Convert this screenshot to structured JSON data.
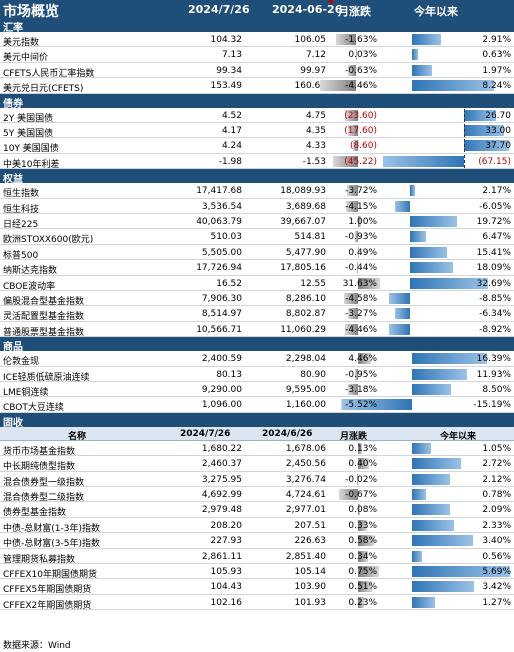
{
  "header": {
    "title": "市场概览",
    "col1": "2024/7/26",
    "col2": "2024-06-26",
    "col3": "月涨跌",
    "col4": "今年以来"
  },
  "sections": [
    {
      "label": "汇率",
      "rows": [
        {
          "name": "美元指数",
          "v1": "104.32",
          "v2": "106.05",
          "mtd": "-1.63%",
          "ytd": "2.91%"
        },
        {
          "name": "美元中间价",
          "v1": "7.13",
          "v2": "7.12",
          "mtd": "0.03%",
          "ytd": "0.63%"
        },
        {
          "name": "CFETS人民币汇率指数",
          "v1": "99.34",
          "v2": "99.97",
          "mtd": "-0.63%",
          "ytd": "1.97%"
        },
        {
          "name": "美元兑日元(CFETS)",
          "v1": "153.49",
          "v2": "160.65",
          "mtd": "-4.46%",
          "ytd": "8.24%"
        }
      ]
    },
    {
      "label": "债券",
      "rows": [
        {
          "name": "2Y 美国国债",
          "v1": "4.52",
          "v2": "4.75",
          "mtd": "(23.60)",
          "ytd": "26.70"
        },
        {
          "name": "5Y 美国国债",
          "v1": "4.17",
          "v2": "4.35",
          "mtd": "(17.60)",
          "ytd": "33.00"
        },
        {
          "name": "10Y 美国国债",
          "v1": "4.24",
          "v2": "4.33",
          "mtd": "(8.60)",
          "ytd": "37.70"
        },
        {
          "name": "中美10年利差",
          "v1": "-1.98",
          "v2": "-1.53",
          "mtd": "(45.22)",
          "ytd": "(67.15)"
        }
      ]
    },
    {
      "label": "权益",
      "rows": [
        {
          "name": "恒生指数",
          "v1": "17,417.68",
          "v2": "18,089.93",
          "mtd": "-3.72%",
          "ytd": "2.17%"
        },
        {
          "name": "恒生科技",
          "v1": "3,536.54",
          "v2": "3,689.68",
          "mtd": "-4.15%",
          "ytd": "-6.05%"
        },
        {
          "name": "日经225",
          "v1": "40,063.79",
          "v2": "39,667.07",
          "mtd": "1.00%",
          "ytd": "19.72%"
        },
        {
          "name": "欧洲STOXX600(欧元)",
          "v1": "510.03",
          "v2": "514.81",
          "mtd": "-0.93%",
          "ytd": "6.47%"
        },
        {
          "name": "标普500",
          "v1": "5,505.00",
          "v2": "5,477.90",
          "mtd": "0.49%",
          "ytd": "15.41%"
        },
        {
          "name": "纳斯达克指数",
          "v1": "17,726.94",
          "v2": "17,805.16",
          "mtd": "-0.44%",
          "ytd": "18.09%"
        },
        {
          "name": "CBOE波动率",
          "v1": "16.52",
          "v2": "12.55",
          "mtd": "31.63%",
          "ytd": "32.69%"
        },
        {
          "name": "偏股混合型基金指数",
          "v1": "7,906.30",
          "v2": "8,286.10",
          "mtd": "-4.58%",
          "ytd": "-8.85%"
        },
        {
          "name": "灵活配置型基金指数",
          "v1": "8,514.97",
          "v2": "8,802.87",
          "mtd": "-3.27%",
          "ytd": "-6.34%"
        },
        {
          "name": "普通股票型基金指数",
          "v1": "10,566.71",
          "v2": "11,060.29",
          "mtd": "-4.46%",
          "ytd": "-8.92%"
        }
      ]
    },
    {
      "label": "商品",
      "rows": [
        {
          "name": "伦敦金现",
          "v1": "2,400.59",
          "v2": "2,298.04",
          "mtd": "4.46%",
          "ytd": "16.39%"
        },
        {
          "name": "ICE轻质低硫原油连续",
          "v1": "80.13",
          "v2": "80.90",
          "mtd": "-0.95%",
          "ytd": "11.93%"
        },
        {
          "name": "LME铜连续",
          "v1": "9,290.00",
          "v2": "9,595.00",
          "mtd": "-3.18%",
          "ytd": "8.50%"
        },
        {
          "name": "CBOT大豆连续",
          "v1": "1,096.00",
          "v2": "1,160.00",
          "mtd": "-5.52%",
          "ytd": "-15.19%"
        }
      ]
    },
    {
      "label": "固收",
      "colhdr": {
        "c0": "名称",
        "c1": "2024/7/26",
        "c2": "2024/6/26",
        "c3": "月涨跌",
        "c4": "今年以来"
      },
      "rows": [
        {
          "name": "货币市场基金指数",
          "v1": "1,680.22",
          "v2": "1,678.06",
          "mtd": "0.13%",
          "ytd": "1.05%"
        },
        {
          "name": "中长期纯债型指数",
          "v1": "2,460.37",
          "v2": "2,450.56",
          "mtd": "0.40%",
          "ytd": "2.72%"
        },
        {
          "name": "混合债券型一级指数",
          "v1": "3,275.95",
          "v2": "3,276.74",
          "mtd": "-0.02%",
          "ytd": "2.12%"
        },
        {
          "name": "混合债券型二级指数",
          "v1": "4,692.99",
          "v2": "4,724.61",
          "mtd": "-0.67%",
          "ytd": "0.78%"
        },
        {
          "name": "债券型基金指数",
          "v1": "2,979.48",
          "v2": "2,977.01",
          "mtd": "0.08%",
          "ytd": "2.09%"
        },
        {
          "name": "中债-总财富(1-3年)指数",
          "v1": "208.20",
          "v2": "207.51",
          "mtd": "0.33%",
          "ytd": "2.33%"
        },
        {
          "name": "中债-总财富(3-5年)指数",
          "v1": "227.93",
          "v2": "226.63",
          "mtd": "0.58%",
          "ytd": "3.40%"
        },
        {
          "name": "管理期货私募指数",
          "v1": "2,861.11",
          "v2": "2,851.40",
          "mtd": "0.34%",
          "ytd": "0.56%"
        },
        {
          "name": "CFFEX10年期国债期货",
          "v1": "105.93",
          "v2": "105.14",
          "mtd": "0.75%",
          "ytd": "5.69%"
        },
        {
          "name": "CFFEX5年期国债期货",
          "v1": "104.43",
          "v2": "103.90",
          "mtd": "0.51%",
          "ytd": "3.42%"
        },
        {
          "name": "CFFEX2年期国债期货",
          "v1": "102.16",
          "v2": "101.93",
          "mtd": "0.23%",
          "ytd": "1.27%"
        }
      ]
    }
  ],
  "footer": "数据来源：Wind",
  "colors": {
    "header_bg": "#1f4e79",
    "bar": "#2f75b5",
    "negative": "#c00000"
  }
}
